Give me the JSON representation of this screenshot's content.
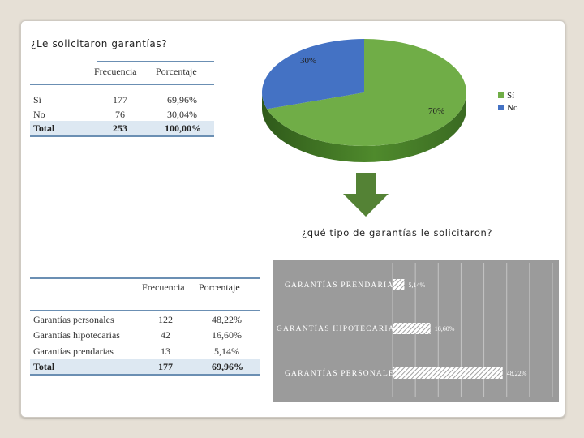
{
  "question1": "¿Le solicitaron garantías?",
  "question2": "¿qué tipo de garantías le solicitaron?",
  "table1": {
    "headers": {
      "freq": "Frecuencia",
      "pct": "Porcentaje"
    },
    "rows": [
      {
        "label": "Sí",
        "freq": "177",
        "pct": "69,96%"
      },
      {
        "label": "No",
        "freq": "76",
        "pct": "30,04%"
      }
    ],
    "total": {
      "label": "Total",
      "freq": "253",
      "pct": "100,00%"
    }
  },
  "table2": {
    "headers": {
      "freq": "Frecuencia",
      "pct": "Porcentaje"
    },
    "rows": [
      {
        "label": "Garantías personales",
        "freq": "122",
        "pct": "48,22%"
      },
      {
        "label": "Garantías hipotecarias",
        "freq": "42",
        "pct": "16,60%"
      },
      {
        "label": "Garantías prendarias",
        "freq": "13",
        "pct": "5,14%"
      }
    ],
    "total": {
      "label": "Total",
      "freq": "177",
      "pct": "69,96%"
    }
  },
  "chart_data": [
    {
      "type": "pie",
      "style": "3d",
      "slices": [
        {
          "label": "Sí",
          "value": 70,
          "display": "70%",
          "color": "#70ad47"
        },
        {
          "label": "No",
          "value": 30,
          "display": "30%",
          "color": "#4472c4"
        }
      ],
      "legend": {
        "position": "right",
        "entries": [
          "Sí",
          "No"
        ]
      }
    },
    {
      "type": "bar",
      "orientation": "horizontal",
      "categories": [
        "GARANTÍAS PRENDARIAS",
        "GARANTÍAS HIPOTECARIAS",
        "GARANTÍAS PERSONALES"
      ],
      "values": [
        5.14,
        16.6,
        48.22
      ],
      "labels": [
        "5,14%",
        "16,60%",
        "48,22%"
      ],
      "xlim": [
        0,
        70
      ],
      "grid": true,
      "colors": {
        "background": "#9b9b9b",
        "bar": "#ffffff",
        "hatch": "#8a8a8a"
      }
    }
  ]
}
